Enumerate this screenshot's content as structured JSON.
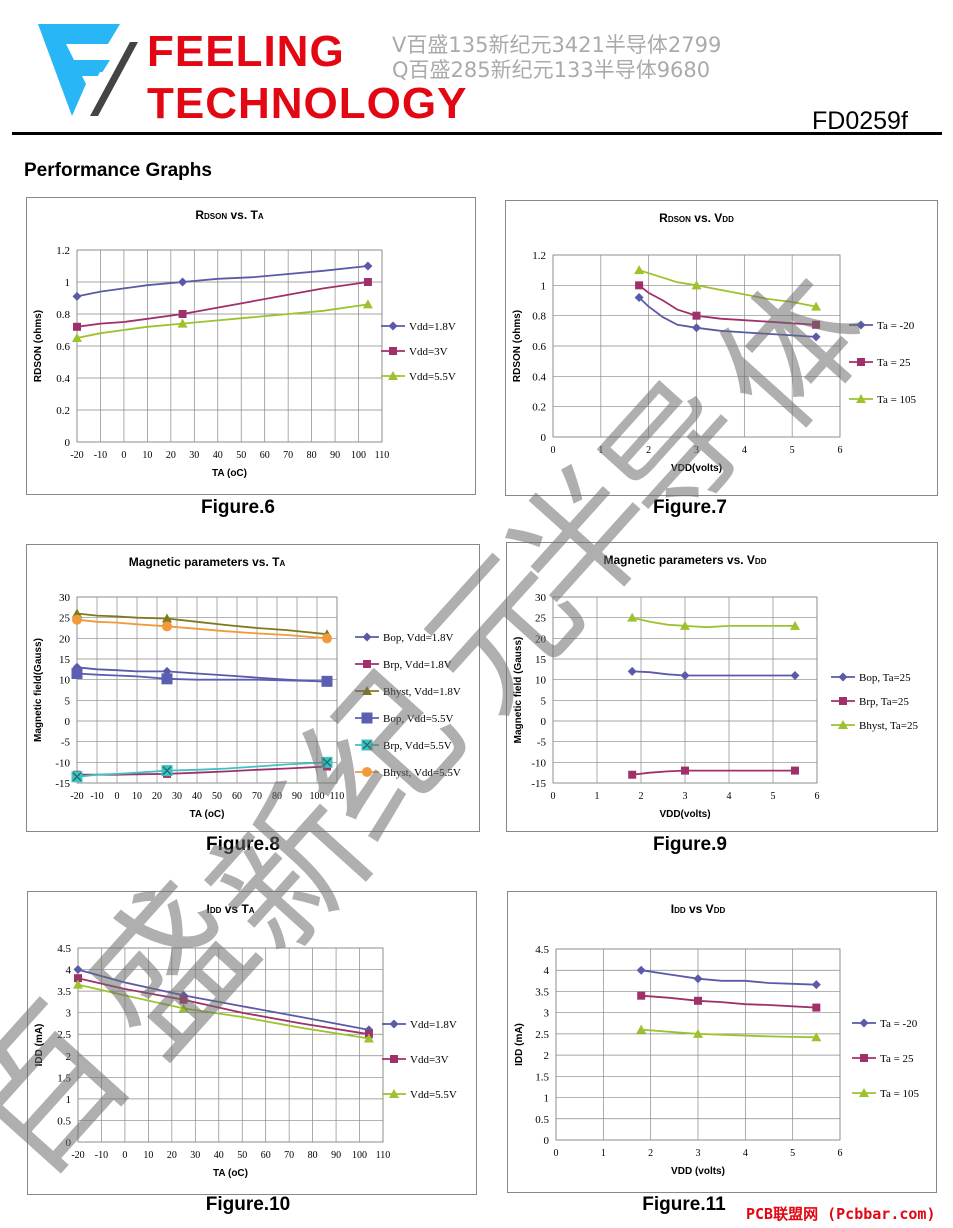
{
  "header": {
    "brand_line1": "FEELING",
    "brand_line2": "TECHNOLOGY",
    "watermark_line1": "V百盛135新纪元3421半导体2799",
    "watermark_line2": "Q百盛285新纪元133半导体9680",
    "doc_code": "FD0259f"
  },
  "section_title": "Performance Graphs",
  "footer_credit": "PCB联盟网 (Pcbbar.com)",
  "watermark_chars": [
    "百",
    "盛",
    "新",
    "纪",
    "元",
    "半",
    "导",
    "体"
  ],
  "colors": {
    "brand_red": "#e30613",
    "logo_cyan": "#29b6f6",
    "s1": "#5a5aa8",
    "s2": "#a0306a",
    "s3": "#9cc22e",
    "s4": "#7e7a1c",
    "s5": "#5b5fb3",
    "s6": "#3ec2c2",
    "s7": "#f29a3a"
  },
  "chart_data": [
    {
      "id": "fig6",
      "caption": "Figure.6",
      "type": "line",
      "title": "RDSON vs. TA",
      "xlabel": "TA (oC)",
      "ylabel": "RDSON (ohms)",
      "xlim": [
        -20,
        110
      ],
      "ylim": [
        0,
        1.2
      ],
      "xticks": [
        -20,
        -10,
        0,
        10,
        20,
        30,
        40,
        50,
        60,
        70,
        80,
        90,
        100,
        110
      ],
      "xtick_labels": [
        "-20",
        "-10",
        "0",
        "10",
        "20",
        "30",
        "40",
        "50",
        "60",
        "70",
        "80",
        "90",
        "100",
        "110"
      ],
      "yticks": [
        0,
        0.2,
        0.4,
        0.6,
        0.8,
        1,
        1.2
      ],
      "ytick_labels": [
        "0",
        "0.2",
        "0.4",
        "0.6",
        "0.8",
        "1",
        "1.2"
      ],
      "series": [
        {
          "name": "Vdd=1.8V",
          "marker": "diamond",
          "color": "#5a5aa8",
          "x": [
            -20,
            -10,
            0,
            10,
            25,
            40,
            55,
            70,
            85,
            104
          ],
          "y": [
            0.91,
            0.94,
            0.96,
            0.98,
            1.0,
            1.02,
            1.03,
            1.05,
            1.07,
            1.1
          ],
          "marked": [
            0,
            4,
            9
          ]
        },
        {
          "name": "Vdd=3V",
          "marker": "square",
          "color": "#a0306a",
          "x": [
            -20,
            -10,
            0,
            10,
            25,
            40,
            55,
            70,
            85,
            104
          ],
          "y": [
            0.72,
            0.74,
            0.75,
            0.77,
            0.8,
            0.84,
            0.88,
            0.92,
            0.96,
            1.0
          ],
          "marked": [
            0,
            4,
            9
          ]
        },
        {
          "name": "Vdd=5.5V",
          "marker": "triangle",
          "color": "#9cc22e",
          "x": [
            -20,
            -10,
            0,
            10,
            25,
            40,
            55,
            70,
            85,
            104
          ],
          "y": [
            0.65,
            0.68,
            0.7,
            0.72,
            0.74,
            0.76,
            0.78,
            0.8,
            0.82,
            0.86
          ],
          "marked": [
            0,
            4,
            9
          ]
        }
      ]
    },
    {
      "id": "fig7",
      "caption": "Figure.7",
      "type": "line",
      "title": "RDSON vs. VDD",
      "xlabel": "VDD(volts)",
      "ylabel": "RDSON (ohms)",
      "xlim": [
        0,
        6
      ],
      "ylim": [
        0,
        1.2
      ],
      "xticks": [
        0,
        1,
        2,
        3,
        4,
        5,
        6
      ],
      "xtick_labels": [
        "0",
        "1",
        "2",
        "3",
        "4",
        "5",
        "6"
      ],
      "yticks": [
        0,
        0.2,
        0.4,
        0.6,
        0.8,
        1,
        1.2
      ],
      "ytick_labels": [
        "0",
        "0.2",
        "0.4",
        "0.6",
        "0.8",
        "1",
        "1.2"
      ],
      "series": [
        {
          "name": "Ta = -20",
          "marker": "diamond",
          "color": "#5a5aa8",
          "x": [
            1.8,
            2,
            2.3,
            2.6,
            3,
            3.5,
            4,
            4.5,
            5,
            5.5
          ],
          "y": [
            0.92,
            0.86,
            0.79,
            0.74,
            0.72,
            0.7,
            0.69,
            0.68,
            0.67,
            0.66
          ],
          "marked": [
            0,
            4,
            9
          ]
        },
        {
          "name": "Ta = 25",
          "marker": "square",
          "color": "#a0306a",
          "x": [
            1.8,
            2,
            2.3,
            2.6,
            3,
            3.5,
            4,
            4.5,
            5,
            5.5
          ],
          "y": [
            1.0,
            0.95,
            0.9,
            0.84,
            0.8,
            0.78,
            0.77,
            0.76,
            0.75,
            0.74
          ],
          "marked": [
            0,
            4,
            9
          ]
        },
        {
          "name": "Ta = 105",
          "marker": "triangle",
          "color": "#9cc22e",
          "x": [
            1.8,
            2,
            2.3,
            2.6,
            3,
            3.5,
            4,
            4.5,
            5,
            5.5
          ],
          "y": [
            1.1,
            1.08,
            1.05,
            1.02,
            1.0,
            0.97,
            0.94,
            0.91,
            0.89,
            0.86
          ],
          "marked": [
            0,
            4,
            9
          ]
        }
      ]
    },
    {
      "id": "fig8",
      "caption": "Figure.8",
      "type": "line",
      "title": "Magnetic parameters vs. TA",
      "xlabel": "TA (oC)",
      "ylabel": "Magnetic field(Gauss)",
      "xlim": [
        -20,
        110
      ],
      "ylim": [
        -15,
        30
      ],
      "xticks": [
        -20,
        -10,
        0,
        10,
        20,
        30,
        40,
        50,
        60,
        70,
        80,
        90,
        100,
        110
      ],
      "xtick_labels": [
        "-20",
        "-10",
        "0",
        "10",
        "20",
        "30",
        "40",
        "50",
        "60",
        "70",
        "80",
        "90",
        "100",
        "110"
      ],
      "yticks": [
        -15,
        -10,
        -5,
        0,
        5,
        10,
        15,
        20,
        25,
        30
      ],
      "ytick_labels": [
        "-15",
        "-10",
        "-5",
        "0",
        "5",
        "10",
        "15",
        "20",
        "25",
        "30"
      ],
      "series": [
        {
          "name": "Bop, Vdd=1.8V",
          "marker": "diamond",
          "color": "#5a5aa8",
          "x": [
            -20,
            -10,
            0,
            10,
            25,
            40,
            55,
            70,
            85,
            105
          ],
          "y": [
            13,
            12.5,
            12.3,
            12,
            12,
            11.5,
            11,
            10.5,
            10,
            9.5
          ],
          "marked": [
            0,
            4,
            9
          ]
        },
        {
          "name": "Brp, Vdd=1.8V",
          "marker": "square",
          "color": "#a0306a",
          "x": [
            -20,
            -10,
            0,
            10,
            25,
            40,
            55,
            70,
            85,
            105
          ],
          "y": [
            -13,
            -13,
            -13,
            -12.9,
            -12.8,
            -12.5,
            -12.2,
            -11.8,
            -11.5,
            -11
          ],
          "marked": [
            0,
            4,
            9
          ]
        },
        {
          "name": "Bhyst, Vdd=1.8V",
          "marker": "triangle",
          "color": "#7e7a1c",
          "x": [
            -20,
            -10,
            0,
            10,
            25,
            40,
            55,
            70,
            85,
            105
          ],
          "y": [
            26,
            25.5,
            25.3,
            25,
            24.8,
            24,
            23.2,
            22.5,
            22,
            21
          ],
          "marked": [
            0,
            4,
            9
          ]
        },
        {
          "name": "Bop, Vdd=5.5V",
          "marker": "bigsquare",
          "color": "#5b5fb3",
          "x": [
            -20,
            -10,
            0,
            10,
            25,
            40,
            55,
            70,
            85,
            105
          ],
          "y": [
            11.5,
            11.2,
            11,
            10.8,
            10.2,
            10,
            10,
            10,
            9.8,
            9.6
          ],
          "marked": [
            0,
            4,
            9
          ]
        },
        {
          "name": "Brp, Vdd=5.5V",
          "marker": "xsquare",
          "color": "#3ec2c2",
          "x": [
            -20,
            -10,
            0,
            10,
            25,
            40,
            55,
            70,
            85,
            105
          ],
          "y": [
            -13.5,
            -13,
            -12.8,
            -12.5,
            -12,
            -11.8,
            -11.5,
            -11,
            -10.5,
            -10
          ],
          "marked": [
            0,
            4,
            9
          ]
        },
        {
          "name": "Bhyst, Vdd=5.5V",
          "marker": "circle",
          "color": "#f29a3a",
          "x": [
            -20,
            -10,
            0,
            10,
            25,
            40,
            55,
            70,
            85,
            105
          ],
          "y": [
            24.5,
            24,
            23.8,
            23.4,
            22.9,
            22.3,
            21.7,
            21.2,
            20.8,
            20
          ],
          "marked": [
            0,
            4,
            9
          ]
        }
      ]
    },
    {
      "id": "fig9",
      "caption": "Figure.9",
      "type": "line",
      "title": "Magnetic parameters vs. VDD",
      "xlabel": "VDD(volts)",
      "ylabel": "Magnetic field (Gauss)",
      "xlim": [
        0,
        6
      ],
      "ylim": [
        -15,
        30
      ],
      "xticks": [
        0,
        1,
        2,
        3,
        4,
        5,
        6
      ],
      "xtick_labels": [
        "0",
        "1",
        "2",
        "3",
        "4",
        "5",
        "6"
      ],
      "yticks": [
        -15,
        -10,
        -5,
        0,
        5,
        10,
        15,
        20,
        25,
        30
      ],
      "ytick_labels": [
        "-15",
        "-10",
        "-5",
        "0",
        "5",
        "10",
        "15",
        "20",
        "25",
        "30"
      ],
      "series": [
        {
          "name": "Bop, Ta=25",
          "marker": "diamond",
          "color": "#5a5aa8",
          "x": [
            1.8,
            2.2,
            2.6,
            3,
            3.5,
            4,
            4.5,
            5,
            5.5
          ],
          "y": [
            12,
            11.8,
            11.3,
            11,
            11,
            11,
            11,
            11,
            11
          ],
          "marked": [
            0,
            3,
            8
          ]
        },
        {
          "name": "Brp, Ta=25",
          "marker": "square",
          "color": "#a0306a",
          "x": [
            1.8,
            2.2,
            2.6,
            3,
            3.5,
            4,
            4.5,
            5,
            5.5
          ],
          "y": [
            -13,
            -12.5,
            -12.2,
            -12,
            -12,
            -12,
            -12,
            -12,
            -12
          ],
          "marked": [
            0,
            3,
            8
          ]
        },
        {
          "name": "Bhyst, Ta=25",
          "marker": "triangle",
          "color": "#9cc22e",
          "x": [
            1.8,
            2.2,
            2.6,
            3,
            3.5,
            4,
            4.5,
            5,
            5.5
          ],
          "y": [
            25,
            24,
            23.3,
            23,
            22.7,
            23,
            23,
            23,
            23
          ],
          "marked": [
            0,
            3,
            8
          ]
        }
      ]
    },
    {
      "id": "fig10",
      "caption": "Figure.10",
      "type": "line",
      "title": "IDD vs TA",
      "xlabel": "TA (oC)",
      "ylabel": "IDD (mA)",
      "xlim": [
        -20,
        110
      ],
      "ylim": [
        0,
        4.5
      ],
      "xticks": [
        -20,
        -10,
        0,
        10,
        20,
        30,
        40,
        50,
        60,
        70,
        80,
        90,
        100,
        110
      ],
      "xtick_labels": [
        "-20",
        "-10",
        "0",
        "10",
        "20",
        "30",
        "40",
        "50",
        "60",
        "70",
        "80",
        "90",
        "100",
        "110"
      ],
      "yticks": [
        0,
        0.5,
        1,
        1.5,
        2,
        2.5,
        3,
        3.5,
        4,
        4.5
      ],
      "ytick_labels": [
        "0",
        "0.5",
        "1",
        "1.5",
        "2",
        "2.5",
        "3",
        "3.5",
        "4",
        "4.5"
      ],
      "series": [
        {
          "name": "Vdd=1.8V",
          "marker": "diamond",
          "color": "#5a5aa8",
          "x": [
            -20,
            0,
            25,
            50,
            75,
            104
          ],
          "y": [
            4.0,
            3.7,
            3.4,
            3.15,
            2.9,
            2.6
          ],
          "marked": [
            0,
            2,
            5
          ]
        },
        {
          "name": "Vdd=3V",
          "marker": "square",
          "color": "#a0306a",
          "x": [
            -20,
            0,
            25,
            50,
            75,
            104
          ],
          "y": [
            3.8,
            3.55,
            3.3,
            3.0,
            2.75,
            2.5
          ],
          "marked": [
            0,
            2,
            5
          ]
        },
        {
          "name": "Vdd=5.5V",
          "marker": "triangle",
          "color": "#9cc22e",
          "x": [
            -20,
            0,
            25,
            50,
            75,
            104
          ],
          "y": [
            3.65,
            3.4,
            3.1,
            2.9,
            2.65,
            2.4
          ],
          "marked": [
            0,
            2,
            5
          ]
        }
      ]
    },
    {
      "id": "fig11",
      "caption": "Figure.11",
      "type": "line",
      "title": "IDD vs VDD",
      "xlabel": "VDD (volts)",
      "ylabel": "IDD (mA)",
      "xlim": [
        0,
        6
      ],
      "ylim": [
        0,
        4.5
      ],
      "xticks": [
        0,
        1,
        2,
        3,
        4,
        5,
        6
      ],
      "xtick_labels": [
        "0",
        "1",
        "2",
        "3",
        "4",
        "5",
        "6"
      ],
      "yticks": [
        0,
        0.5,
        1,
        1.5,
        2,
        2.5,
        3,
        3.5,
        4,
        4.5
      ],
      "ytick_labels": [
        "0",
        "0.5",
        "1",
        "1.5",
        "2",
        "2.5",
        "3",
        "3.5",
        "4",
        "4.5"
      ],
      "series": [
        {
          "name": "Ta = -20",
          "marker": "diamond",
          "color": "#5a5aa8",
          "x": [
            1.8,
            2.4,
            3,
            3.5,
            4,
            4.5,
            5,
            5.5
          ],
          "y": [
            4.0,
            3.9,
            3.8,
            3.75,
            3.75,
            3.7,
            3.68,
            3.66
          ],
          "marked": [
            0,
            2,
            7
          ]
        },
        {
          "name": "Ta = 25",
          "marker": "square",
          "color": "#a0306a",
          "x": [
            1.8,
            2.4,
            3,
            3.5,
            4,
            4.5,
            5,
            5.5
          ],
          "y": [
            3.4,
            3.35,
            3.28,
            3.25,
            3.2,
            3.18,
            3.15,
            3.12
          ],
          "marked": [
            0,
            2,
            7
          ]
        },
        {
          "name": "Ta = 105",
          "marker": "triangle",
          "color": "#9cc22e",
          "x": [
            1.8,
            2.4,
            3,
            3.5,
            4,
            4.5,
            5,
            5.5
          ],
          "y": [
            2.6,
            2.55,
            2.5,
            2.48,
            2.46,
            2.44,
            2.43,
            2.42
          ],
          "marked": [
            0,
            2,
            7
          ]
        }
      ]
    }
  ]
}
